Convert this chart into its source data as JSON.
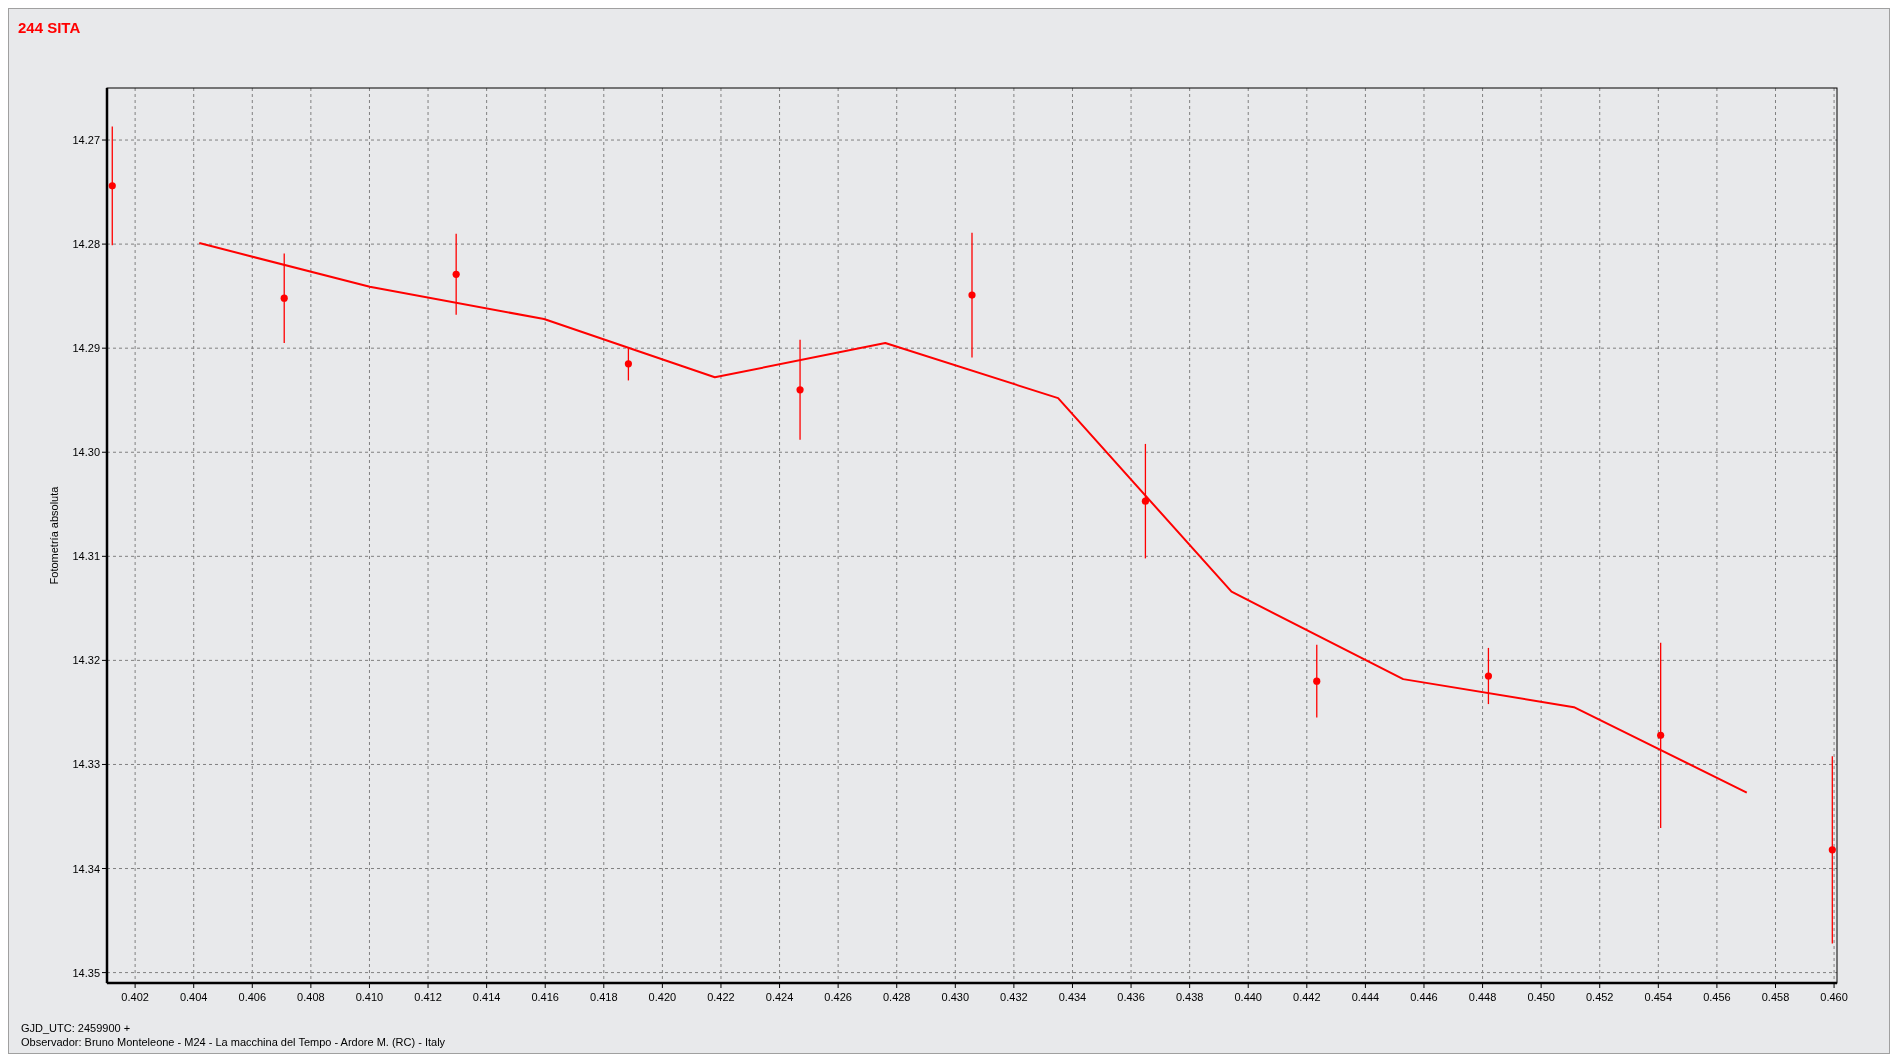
{
  "chart_data": {
    "type": "scatter",
    "title": "244 SITA",
    "ylabel": "Fotometría absoluta",
    "annotations": [
      "GJD_UTC: 2459900 +",
      "Observador: Bruno Monteleone - M24 - La macchina del Tempo - Ardore M. (RC) - Italy"
    ],
    "xlim": [
      0.40104,
      0.4601
    ],
    "ylim": [
      14.351,
      14.265
    ],
    "xticks": [
      0.402,
      0.404,
      0.406,
      0.408,
      {
        "value": 0.41,
        "label": "0.410"
      },
      0.412,
      0.414,
      0.416,
      0.418,
      {
        "value": 0.42,
        "label": "0.420"
      },
      0.422,
      0.424,
      0.426,
      0.428,
      {
        "value": 0.43,
        "label": "0.430"
      },
      0.432,
      0.434,
      0.436,
      0.438,
      {
        "value": 0.44,
        "label": "0.440"
      },
      0.442,
      0.444,
      0.446,
      0.448,
      {
        "value": 0.45,
        "label": "0.450"
      },
      0.452,
      0.454,
      0.456,
      0.458,
      {
        "value": 0.46,
        "label": "0.460"
      }
    ],
    "yticks": [
      14.27,
      14.28,
      14.29,
      {
        "value": 14.3,
        "label": "14.30"
      },
      14.31,
      14.32,
      14.33,
      14.34,
      14.35
    ],
    "grid": true,
    "series": [
      {
        "color": "#ff0000",
        "marker": "circle",
        "x": [
          0.40122,
          0.40709,
          0.41296,
          0.41884,
          0.4247,
          0.43057,
          0.43649,
          0.44234,
          0.4482,
          0.45408,
          0.45994
        ],
        "values": [
          14.2744,
          14.2852,
          14.2829,
          14.2915,
          14.294,
          14.2849,
          14.3047,
          14.322,
          14.3215,
          14.3272,
          14.3382
        ],
        "errors": [
          0.0057,
          0.0043,
          0.0039,
          0.0016,
          0.0048,
          0.006,
          0.0055,
          0.0035,
          0.0027,
          0.0089,
          0.009
        ]
      },
      {
        "type": "line",
        "color": "#ff0000",
        "line_style": "solid",
        "x": [
          0.40419,
          0.41001,
          0.41596,
          0.42179,
          0.42761,
          0.43351,
          0.43943,
          0.44529,
          0.45112,
          0.45702
        ],
        "values": [
          14.2799,
          14.2841,
          14.2872,
          14.2928,
          14.2895,
          14.2948,
          14.3134,
          14.3218,
          14.3245,
          14.3327
        ]
      }
    ]
  }
}
